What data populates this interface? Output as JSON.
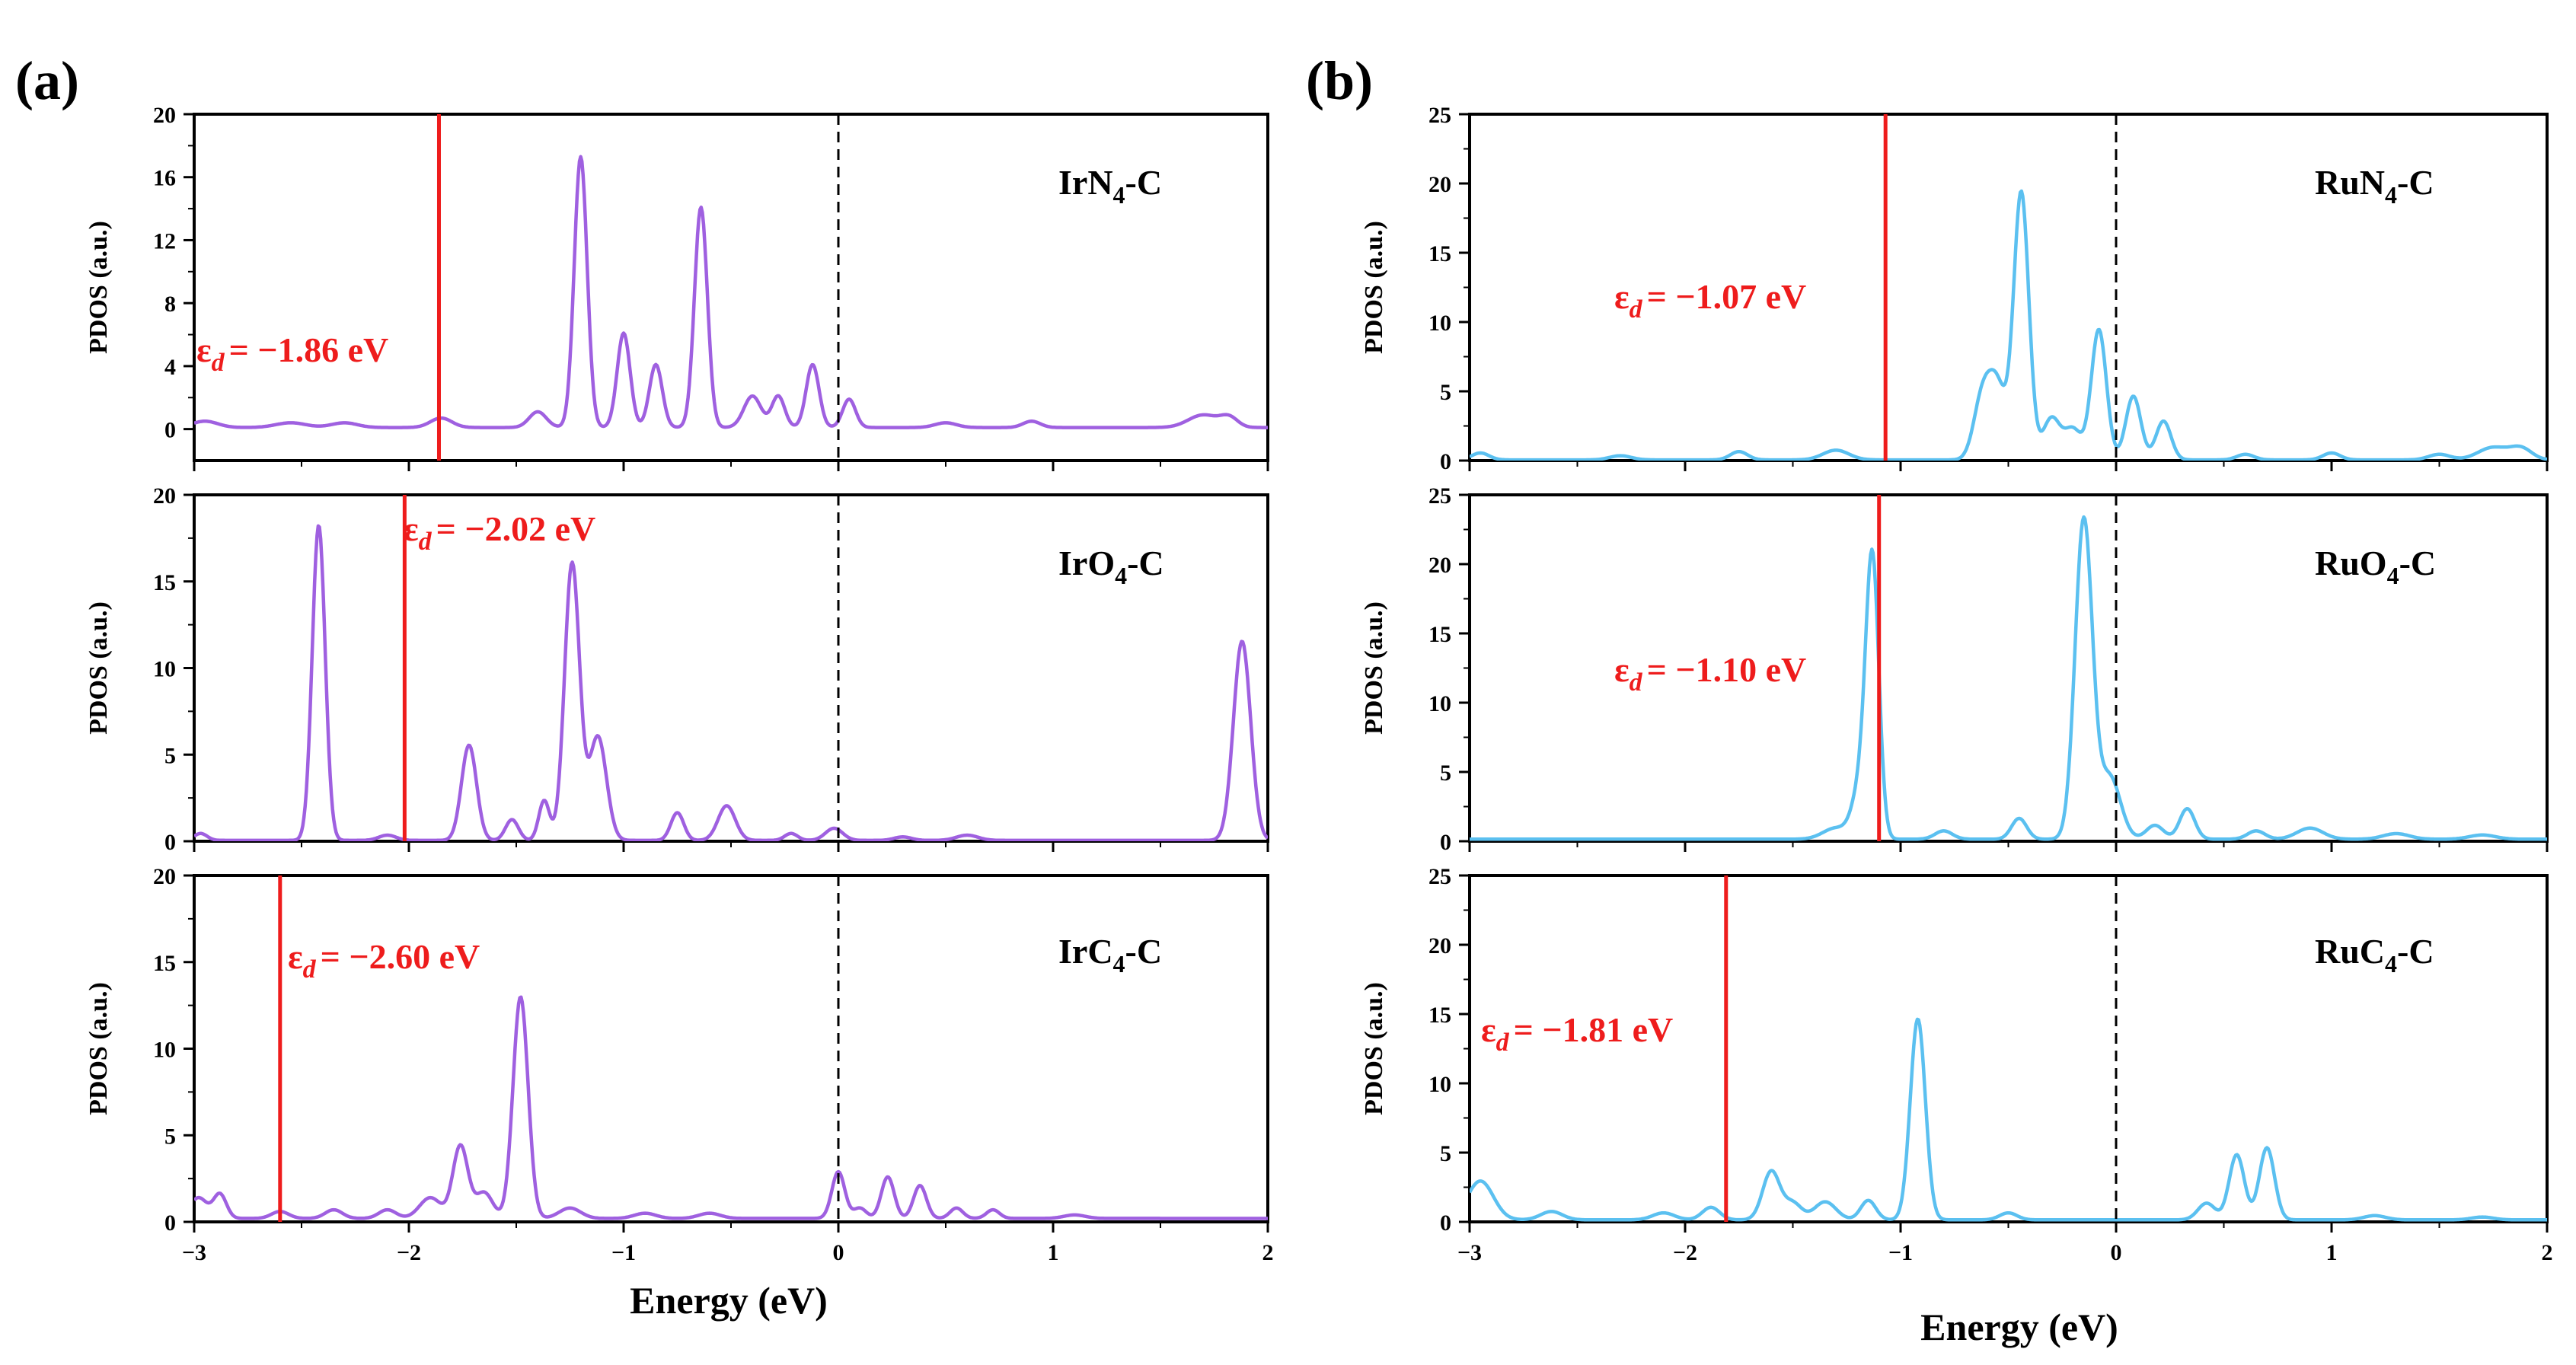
{
  "chart_data": [
    {
      "panel": "(a)",
      "type": "line",
      "system": "IrN4-C",
      "label_main": "IrN",
      "label_sub": "4",
      "label_tail": "-C",
      "ed": -1.86,
      "ed_text": "= −1.86 eV",
      "ed_symbol": "ε",
      "ed_subscript": "d",
      "xlabel": "Energy (eV)",
      "ylabel": "PDOS (a.u.)",
      "xlim": [
        -3,
        2
      ],
      "ylim": [
        -2,
        20
      ],
      "yticks": [
        0,
        4,
        8,
        12,
        16,
        20
      ],
      "xticks": [
        -3,
        -2,
        -1,
        0,
        1,
        2
      ],
      "fermi": 0,
      "color": "#9f60e0",
      "peaks": [
        [
          -2.95,
          0.4,
          0.06
        ],
        [
          -2.55,
          0.3,
          0.07
        ],
        [
          -2.3,
          0.3,
          0.06
        ],
        [
          -1.85,
          0.6,
          0.05
        ],
        [
          -1.4,
          1.0,
          0.04
        ],
        [
          -1.2,
          17.2,
          0.03
        ],
        [
          -1.0,
          6.0,
          0.03
        ],
        [
          -0.85,
          4.0,
          0.03
        ],
        [
          -0.64,
          14.0,
          0.03
        ],
        [
          -0.4,
          2.0,
          0.04
        ],
        [
          -0.28,
          2.0,
          0.03
        ],
        [
          -0.12,
          4.0,
          0.03
        ],
        [
          0.05,
          1.8,
          0.03
        ],
        [
          0.5,
          0.3,
          0.05
        ],
        [
          0.9,
          0.4,
          0.04
        ],
        [
          1.7,
          0.8,
          0.07
        ],
        [
          1.82,
          0.6,
          0.04
        ]
      ],
      "baseline": 0.1
    },
    {
      "panel": "(a)",
      "type": "line",
      "system": "IrO4-C",
      "label_main": "IrO",
      "label_sub": "4",
      "label_tail": "-C",
      "ed": -2.02,
      "ed_text": "= −2.02 eV",
      "ed_symbol": "ε",
      "ed_subscript": "d",
      "xlabel": "Energy (eV)",
      "ylabel": "PDOS (a.u.)",
      "xlim": [
        -3,
        2
      ],
      "ylim": [
        0,
        20
      ],
      "yticks": [
        0,
        5,
        10,
        15,
        20
      ],
      "xticks": [
        -3,
        -2,
        -1,
        0,
        1,
        2
      ],
      "fermi": 0,
      "color": "#9f60e0",
      "peaks": [
        [
          -2.97,
          0.4,
          0.03
        ],
        [
          -2.42,
          18.2,
          0.03
        ],
        [
          -2.1,
          0.3,
          0.04
        ],
        [
          -1.72,
          5.5,
          0.035
        ],
        [
          -1.52,
          1.2,
          0.03
        ],
        [
          -1.37,
          2.3,
          0.025
        ],
        [
          -1.24,
          16.0,
          0.035
        ],
        [
          -1.12,
          6.0,
          0.04
        ],
        [
          -0.75,
          1.6,
          0.03
        ],
        [
          -0.52,
          2.0,
          0.04
        ],
        [
          -0.22,
          0.4,
          0.03
        ],
        [
          -0.02,
          0.7,
          0.04
        ],
        [
          0.3,
          0.2,
          0.04
        ],
        [
          0.6,
          0.3,
          0.05
        ],
        [
          1.88,
          11.5,
          0.04
        ]
      ],
      "baseline": 0.05
    },
    {
      "panel": "(a)",
      "type": "line",
      "system": "IrC4-C",
      "label_main": "IrC",
      "label_sub": "4",
      "label_tail": "-C",
      "ed": -2.6,
      "ed_text": "= −2.60 eV",
      "ed_symbol": "ε",
      "ed_subscript": "d",
      "xlabel": "Energy (eV)",
      "ylabel": "PDOS (a.u.)",
      "xlim": [
        -3,
        2
      ],
      "ylim": [
        0,
        20
      ],
      "yticks": [
        0,
        5,
        10,
        15,
        20
      ],
      "xticks": [
        -3,
        -2,
        -1,
        0,
        1,
        2
      ],
      "fermi": 0,
      "color": "#9f60e0",
      "peaks": [
        [
          -2.98,
          1.2,
          0.04
        ],
        [
          -2.88,
          1.4,
          0.03
        ],
        [
          -2.6,
          0.4,
          0.04
        ],
        [
          -2.35,
          0.5,
          0.04
        ],
        [
          -2.1,
          0.5,
          0.04
        ],
        [
          -1.9,
          1.2,
          0.05
        ],
        [
          -1.76,
          4.2,
          0.035
        ],
        [
          -1.65,
          1.5,
          0.04
        ],
        [
          -1.48,
          12.8,
          0.035
        ],
        [
          -1.25,
          0.6,
          0.05
        ],
        [
          -0.9,
          0.3,
          0.05
        ],
        [
          -0.6,
          0.3,
          0.05
        ],
        [
          0.0,
          2.7,
          0.03
        ],
        [
          0.1,
          0.6,
          0.03
        ],
        [
          0.23,
          2.4,
          0.03
        ],
        [
          0.38,
          1.9,
          0.03
        ],
        [
          0.55,
          0.6,
          0.03
        ],
        [
          0.72,
          0.5,
          0.03
        ],
        [
          1.1,
          0.2,
          0.05
        ]
      ],
      "baseline": 0.2
    },
    {
      "panel": "(b)",
      "type": "line",
      "system": "RuN4-C",
      "label_main": "RuN",
      "label_sub": "4",
      "label_tail": "-C",
      "ed": -1.07,
      "ed_text": "= −1.07 eV",
      "ed_symbol": "ε",
      "ed_subscript": "d",
      "xlabel": "Energy (eV)",
      "ylabel": "PDOS (a.u.)",
      "xlim": [
        -3,
        2
      ],
      "ylim": [
        0,
        25
      ],
      "yticks": [
        0,
        5,
        10,
        15,
        20,
        25
      ],
      "xticks": [
        -3,
        -2,
        -1,
        0,
        1,
        2
      ],
      "fermi": 0,
      "color": "#5bc0f0",
      "peaks": [
        [
          -2.95,
          0.5,
          0.04
        ],
        [
          -2.3,
          0.3,
          0.05
        ],
        [
          -1.75,
          0.6,
          0.04
        ],
        [
          -1.3,
          0.7,
          0.06
        ],
        [
          -0.62,
          4.5,
          0.04
        ],
        [
          -0.55,
          5.0,
          0.04
        ],
        [
          -0.44,
          19.3,
          0.035
        ],
        [
          -0.3,
          3.0,
          0.04
        ],
        [
          -0.2,
          2.2,
          0.04
        ],
        [
          -0.08,
          9.4,
          0.035
        ],
        [
          0.08,
          4.6,
          0.035
        ],
        [
          0.22,
          2.8,
          0.035
        ],
        [
          0.6,
          0.4,
          0.04
        ],
        [
          1.0,
          0.5,
          0.04
        ],
        [
          1.5,
          0.4,
          0.05
        ],
        [
          1.75,
          0.9,
          0.07
        ],
        [
          1.88,
          0.8,
          0.05
        ]
      ],
      "baseline": 0.05
    },
    {
      "panel": "(b)",
      "type": "line",
      "system": "RuO4-C",
      "label_main": "RuO",
      "label_sub": "4",
      "label_tail": "-C",
      "ed": -1.1,
      "ed_text": "= −1.10 eV",
      "ed_symbol": "ε",
      "ed_subscript": "d",
      "xlabel": "Energy (eV)",
      "ylabel": "PDOS (a.u.)",
      "xlim": [
        -3,
        2
      ],
      "ylim": [
        0,
        25
      ],
      "yticks": [
        0,
        5,
        10,
        15,
        20,
        25
      ],
      "xticks": [
        -3,
        -2,
        -1,
        0,
        1,
        2
      ],
      "fermi": 0,
      "color": "#5bc0f0",
      "peaks": [
        [
          -1.3,
          0.8,
          0.06
        ],
        [
          -1.18,
          4.0,
          0.04
        ],
        [
          -1.13,
          19.0,
          0.03
        ],
        [
          -0.8,
          0.6,
          0.04
        ],
        [
          -0.45,
          1.5,
          0.035
        ],
        [
          -0.15,
          23.0,
          0.04
        ],
        [
          -0.03,
          4.5,
          0.05
        ],
        [
          0.18,
          1.0,
          0.04
        ],
        [
          0.33,
          2.2,
          0.035
        ],
        [
          0.65,
          0.6,
          0.04
        ],
        [
          0.9,
          0.8,
          0.06
        ],
        [
          1.3,
          0.4,
          0.06
        ],
        [
          1.7,
          0.3,
          0.06
        ]
      ],
      "baseline": 0.15
    },
    {
      "panel": "(b)",
      "type": "line",
      "system": "RuC4-C",
      "label_main": "RuC",
      "label_sub": "4",
      "label_tail": "-C",
      "ed": -1.81,
      "ed_text": "= −1.81 eV",
      "ed_symbol": "ε",
      "ed_subscript": "d",
      "xlabel": "Energy (eV)",
      "ylabel": "PDOS (a.u.)",
      "xlim": [
        -3,
        2
      ],
      "ylim": [
        0,
        25
      ],
      "yticks": [
        0,
        5,
        10,
        15,
        20,
        25
      ],
      "xticks": [
        -3,
        -2,
        -1,
        0,
        1,
        2
      ],
      "fermi": 0,
      "color": "#5bc0f0",
      "peaks": [
        [
          -2.95,
          2.8,
          0.06
        ],
        [
          -2.62,
          0.6,
          0.05
        ],
        [
          -2.1,
          0.5,
          0.05
        ],
        [
          -1.88,
          0.9,
          0.04
        ],
        [
          -1.6,
          3.5,
          0.04
        ],
        [
          -1.5,
          1.2,
          0.04
        ],
        [
          -1.35,
          1.3,
          0.05
        ],
        [
          -1.15,
          1.4,
          0.035
        ],
        [
          -0.92,
          14.5,
          0.035
        ],
        [
          -0.5,
          0.5,
          0.04
        ],
        [
          0.42,
          1.2,
          0.04
        ],
        [
          0.56,
          4.7,
          0.035
        ],
        [
          0.7,
          5.2,
          0.035
        ],
        [
          1.2,
          0.3,
          0.05
        ],
        [
          1.7,
          0.2,
          0.05
        ]
      ],
      "baseline": 0.15
    }
  ],
  "panel_labels": [
    "(a)",
    "(b)"
  ],
  "xaxis_title": "Energy (eV)",
  "colors": {
    "ir": "#9f60e0",
    "ru": "#5bc0f0",
    "ed_line": "#ee1c1c"
  }
}
